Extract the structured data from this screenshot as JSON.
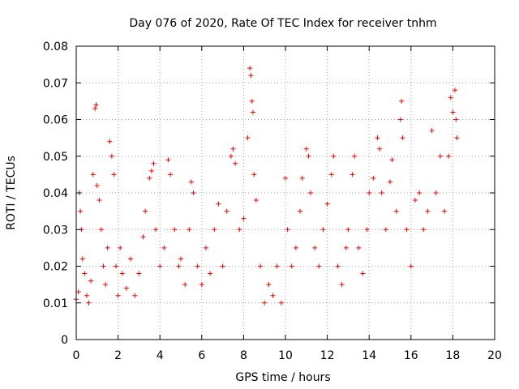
{
  "chart_data": {
    "type": "scatter",
    "title": "Day 076 of 2020, Rate Of TEC Index for receiver tnhm",
    "xlabel": "GPS time / hours",
    "ylabel": "ROTI / TECUs",
    "xlim": [
      0,
      20
    ],
    "ylim": [
      0,
      0.08
    ],
    "x_ticks": [
      0,
      2,
      4,
      6,
      8,
      10,
      12,
      14,
      16,
      18,
      20
    ],
    "y_ticks": [
      0,
      0.01,
      0.02,
      0.03,
      0.04,
      0.05,
      0.06,
      0.07,
      0.08
    ],
    "x_tick_labels": [
      "0",
      "2",
      "4",
      "6",
      "8",
      "10",
      "12",
      "14",
      "16",
      "18",
      "20"
    ],
    "y_tick_labels": [
      "0",
      "0.01",
      "0.02",
      "0.03",
      "0.04",
      "0.05",
      "0.06",
      "0.07",
      "0.08"
    ],
    "grid": true,
    "marker": "+",
    "color": "#ff0000",
    "points": [
      [
        0.0,
        0.011
      ],
      [
        0.1,
        0.013
      ],
      [
        0.15,
        0.04
      ],
      [
        0.2,
        0.035
      ],
      [
        0.25,
        0.03
      ],
      [
        0.3,
        0.022
      ],
      [
        0.4,
        0.018
      ],
      [
        0.5,
        0.012
      ],
      [
        0.6,
        0.01
      ],
      [
        0.7,
        0.016
      ],
      [
        0.8,
        0.045
      ],
      [
        0.9,
        0.063
      ],
      [
        0.95,
        0.064
      ],
      [
        1.0,
        0.042
      ],
      [
        1.1,
        0.038
      ],
      [
        1.2,
        0.03
      ],
      [
        1.3,
        0.02
      ],
      [
        1.4,
        0.015
      ],
      [
        1.5,
        0.025
      ],
      [
        1.6,
        0.054
      ],
      [
        1.7,
        0.05
      ],
      [
        1.8,
        0.045
      ],
      [
        1.9,
        0.02
      ],
      [
        2.0,
        0.012
      ],
      [
        2.1,
        0.025
      ],
      [
        2.2,
        0.018
      ],
      [
        2.4,
        0.014
      ],
      [
        2.6,
        0.022
      ],
      [
        2.8,
        0.012
      ],
      [
        3.0,
        0.018
      ],
      [
        3.2,
        0.028
      ],
      [
        3.3,
        0.035
      ],
      [
        3.5,
        0.044
      ],
      [
        3.6,
        0.046
      ],
      [
        3.7,
        0.048
      ],
      [
        3.8,
        0.03
      ],
      [
        4.0,
        0.02
      ],
      [
        4.2,
        0.025
      ],
      [
        4.4,
        0.049
      ],
      [
        4.5,
        0.045
      ],
      [
        4.7,
        0.03
      ],
      [
        4.9,
        0.02
      ],
      [
        5.0,
        0.022
      ],
      [
        5.2,
        0.015
      ],
      [
        5.4,
        0.03
      ],
      [
        5.5,
        0.043
      ],
      [
        5.6,
        0.04
      ],
      [
        5.8,
        0.02
      ],
      [
        6.0,
        0.015
      ],
      [
        6.2,
        0.025
      ],
      [
        6.4,
        0.018
      ],
      [
        6.6,
        0.03
      ],
      [
        6.8,
        0.037
      ],
      [
        7.0,
        0.02
      ],
      [
        7.2,
        0.035
      ],
      [
        7.4,
        0.05
      ],
      [
        7.5,
        0.052
      ],
      [
        7.6,
        0.048
      ],
      [
        7.8,
        0.03
      ],
      [
        8.0,
        0.033
      ],
      [
        8.2,
        0.055
      ],
      [
        8.3,
        0.074
      ],
      [
        8.35,
        0.072
      ],
      [
        8.4,
        0.065
      ],
      [
        8.45,
        0.062
      ],
      [
        8.5,
        0.045
      ],
      [
        8.6,
        0.038
      ],
      [
        8.8,
        0.02
      ],
      [
        9.0,
        0.01
      ],
      [
        9.2,
        0.015
      ],
      [
        9.4,
        0.012
      ],
      [
        9.6,
        0.02
      ],
      [
        9.8,
        0.01
      ],
      [
        10.0,
        0.044
      ],
      [
        10.1,
        0.03
      ],
      [
        10.3,
        0.02
      ],
      [
        10.5,
        0.025
      ],
      [
        10.7,
        0.035
      ],
      [
        10.8,
        0.044
      ],
      [
        11.0,
        0.052
      ],
      [
        11.1,
        0.05
      ],
      [
        11.2,
        0.04
      ],
      [
        11.4,
        0.025
      ],
      [
        11.6,
        0.02
      ],
      [
        11.8,
        0.03
      ],
      [
        12.0,
        0.037
      ],
      [
        12.2,
        0.045
      ],
      [
        12.3,
        0.05
      ],
      [
        12.5,
        0.02
      ],
      [
        12.7,
        0.015
      ],
      [
        12.9,
        0.025
      ],
      [
        13.0,
        0.03
      ],
      [
        13.2,
        0.045
      ],
      [
        13.3,
        0.05
      ],
      [
        13.5,
        0.025
      ],
      [
        13.7,
        0.018
      ],
      [
        13.9,
        0.03
      ],
      [
        14.0,
        0.04
      ],
      [
        14.2,
        0.044
      ],
      [
        14.4,
        0.055
      ],
      [
        14.5,
        0.052
      ],
      [
        14.6,
        0.04
      ],
      [
        14.8,
        0.03
      ],
      [
        15.0,
        0.043
      ],
      [
        15.1,
        0.049
      ],
      [
        15.3,
        0.035
      ],
      [
        15.5,
        0.06
      ],
      [
        15.55,
        0.065
      ],
      [
        15.6,
        0.055
      ],
      [
        15.8,
        0.03
      ],
      [
        16.0,
        0.02
      ],
      [
        16.2,
        0.038
      ],
      [
        16.4,
        0.04
      ],
      [
        16.6,
        0.03
      ],
      [
        16.8,
        0.035
      ],
      [
        17.0,
        0.057
      ],
      [
        17.2,
        0.04
      ],
      [
        17.4,
        0.05
      ],
      [
        17.6,
        0.035
      ],
      [
        17.8,
        0.05
      ],
      [
        17.9,
        0.066
      ],
      [
        18.0,
        0.062
      ],
      [
        18.1,
        0.068
      ],
      [
        18.15,
        0.06
      ],
      [
        18.2,
        0.055
      ]
    ]
  }
}
